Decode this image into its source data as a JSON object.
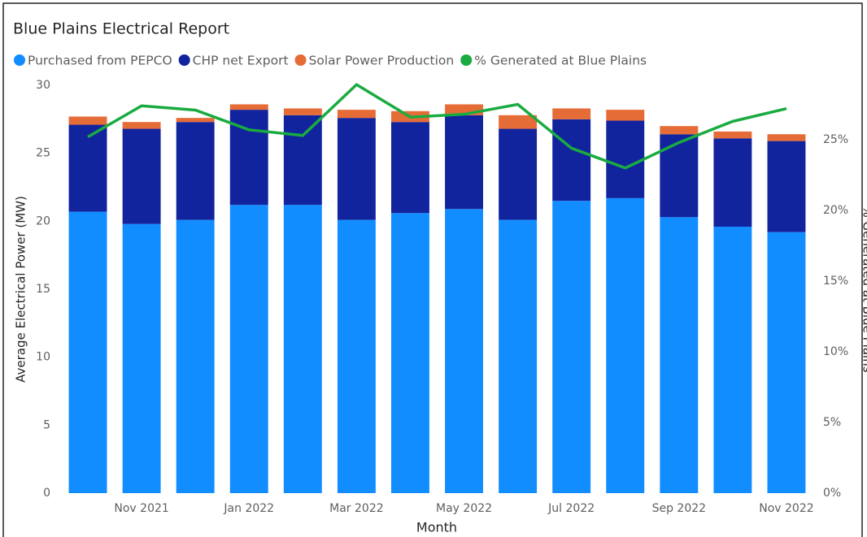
{
  "chart_data": {
    "type": "bar",
    "stacked": true,
    "title": "Blue Plains Electrical Report",
    "xlabel": "Month",
    "ylabel": "Average Electrical Power (MW)",
    "y2label": "% Generated at Blue Plains",
    "categories": [
      null,
      "Nov 2021",
      null,
      "Jan 2022",
      null,
      "Mar 2022",
      null,
      "May 2022",
      null,
      "Jul 2022",
      null,
      "Sep 2022",
      null,
      "Nov 2022"
    ],
    "series": [
      {
        "name": "Purchased from PEPCO",
        "color": "#118DFF",
        "values": [
          20.7,
          19.8,
          20.1,
          21.2,
          21.2,
          20.1,
          20.6,
          20.9,
          20.1,
          21.5,
          21.7,
          20.3,
          19.6,
          19.2
        ]
      },
      {
        "name": "CHP net Export",
        "color": "#12239E",
        "values": [
          6.4,
          7.0,
          7.2,
          7.0,
          6.6,
          7.5,
          6.7,
          6.9,
          6.7,
          6.0,
          5.7,
          6.1,
          6.5,
          6.7
        ]
      },
      {
        "name": "Solar Power Production",
        "color": "#E66C37",
        "values": [
          0.6,
          0.5,
          0.3,
          0.4,
          0.5,
          0.6,
          0.8,
          0.8,
          1.0,
          0.8,
          0.8,
          0.6,
          0.5,
          0.5
        ]
      },
      {
        "name": "% Generated at Blue Plains",
        "color": "#1AAB40",
        "type": "line",
        "axis": "y2",
        "values": [
          25.2,
          27.4,
          27.1,
          25.7,
          25.3,
          28.9,
          26.6,
          26.8,
          27.5,
          24.4,
          23.0,
          24.8,
          26.3,
          27.2
        ]
      }
    ],
    "ylim": [
      0,
      30
    ],
    "yticks": [
      0,
      5,
      10,
      15,
      20,
      25,
      30
    ],
    "y2lim": [
      0,
      28.85
    ],
    "y2ticks": [
      {
        "value": 0,
        "label": "0%"
      },
      {
        "value": 5,
        "label": "5%"
      },
      {
        "value": 10,
        "label": "10%"
      },
      {
        "value": 15,
        "label": "15%"
      },
      {
        "value": 20,
        "label": "20%"
      },
      {
        "value": 25,
        "label": "25%"
      }
    ],
    "grid": false,
    "legend": "top-left"
  }
}
